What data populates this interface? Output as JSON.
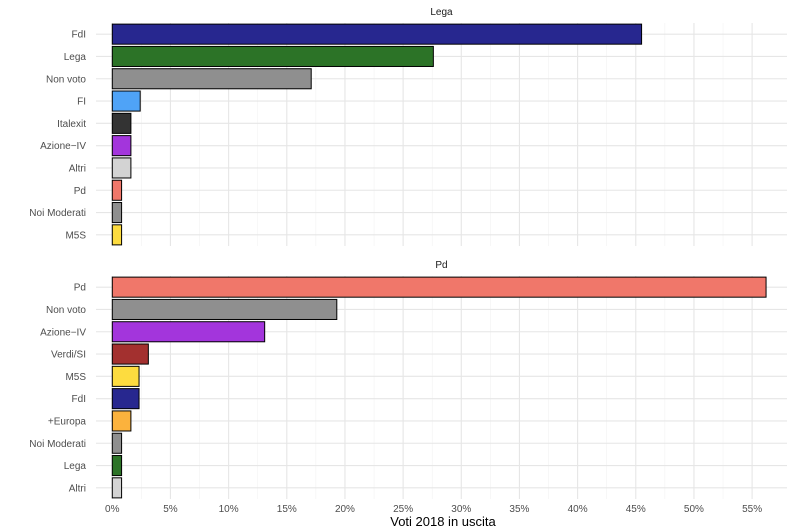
{
  "chart_data": {
    "type": "bar",
    "orientation": "horizontal",
    "xlabel": "Voti 2018 in uscita",
    "xlim": [
      -0.014,
      0.58
    ],
    "x_ticks": [
      0,
      0.05,
      0.1,
      0.15,
      0.2,
      0.25,
      0.3,
      0.35,
      0.4,
      0.45,
      0.5,
      0.55
    ],
    "x_tick_labels": [
      "0%",
      "5%",
      "10%",
      "15%",
      "20%",
      "25%",
      "30%",
      "35%",
      "40%",
      "45%",
      "50%",
      "55%"
    ],
    "grid": true,
    "legend": "none",
    "panels": [
      {
        "title": "Lega",
        "bars": [
          {
            "label": "FdI",
            "value": 0.455,
            "color": "#27278f"
          },
          {
            "label": "Lega",
            "value": 0.276,
            "color": "#2c7327"
          },
          {
            "label": "Non voto",
            "value": 0.171,
            "color": "#8f8f8f"
          },
          {
            "label": "FI",
            "value": 0.024,
            "color": "#4fa3f7"
          },
          {
            "label": "Italexit",
            "value": 0.016,
            "color": "#333333"
          },
          {
            "label": "Azione−IV",
            "value": 0.016,
            "color": "#a335dc"
          },
          {
            "label": "Altri",
            "value": 0.016,
            "color": "#d3d3d3"
          },
          {
            "label": "Pd",
            "value": 0.008,
            "color": "#f0776a"
          },
          {
            "label": "Noi Moderati",
            "value": 0.008,
            "color": "#8f8f8f"
          },
          {
            "label": "M5S",
            "value": 0.008,
            "color": "#fddc3f"
          }
        ]
      },
      {
        "title": "Pd",
        "bars": [
          {
            "label": "Pd",
            "value": 0.562,
            "color": "#f0776a"
          },
          {
            "label": "Non voto",
            "value": 0.193,
            "color": "#8f8f8f"
          },
          {
            "label": "Azione−IV",
            "value": 0.131,
            "color": "#a335dc"
          },
          {
            "label": "Verdi/SI",
            "value": 0.031,
            "color": "#a3302f"
          },
          {
            "label": "M5S",
            "value": 0.023,
            "color": "#fddc3f"
          },
          {
            "label": "FdI",
            "value": 0.023,
            "color": "#27278f"
          },
          {
            "label": "+Europa",
            "value": 0.016,
            "color": "#fbb23d"
          },
          {
            "label": "Noi Moderati",
            "value": 0.008,
            "color": "#8f8f8f"
          },
          {
            "label": "Lega",
            "value": 0.008,
            "color": "#2c7327"
          },
          {
            "label": "Altri",
            "value": 0.008,
            "color": "#d3d3d3"
          }
        ]
      }
    ]
  }
}
